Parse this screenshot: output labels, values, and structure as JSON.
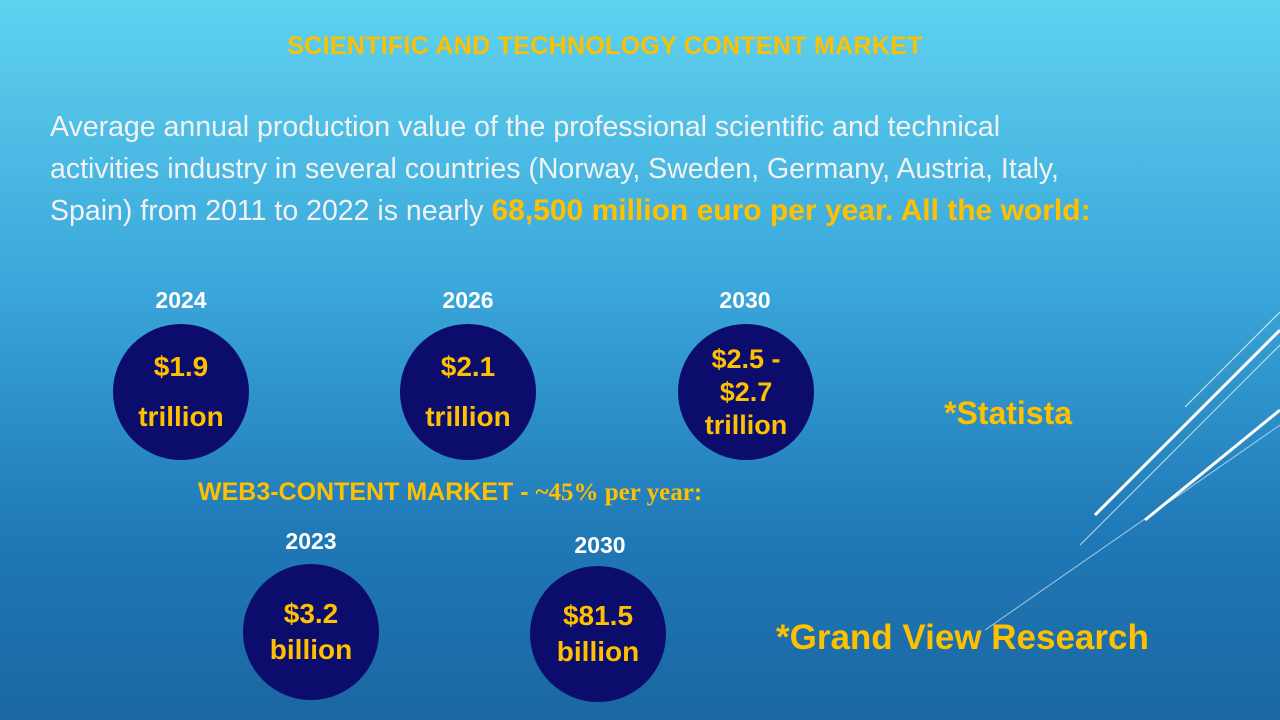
{
  "title": "SCIENTIFIC AND TECHNOLOGY CONTENT MARKET",
  "intro": {
    "text": "Average annual production value of the professional scientific and technical activities industry in several countries (Norway, Sweden, Germany, Austria, Italy, Spain) from 2011 to 2022 is nearly ",
    "highlight": "68,500 million euro per year. All the world:"
  },
  "world": {
    "items": [
      {
        "year": "2024",
        "lines": [
          "$1.9",
          "trillion"
        ]
      },
      {
        "year": "2026",
        "lines": [
          "$2.1",
          "trillion"
        ]
      },
      {
        "year": "2030",
        "lines": [
          "$2.5 -",
          "$2.7",
          "trillion"
        ]
      }
    ],
    "source": "*Statista"
  },
  "web3": {
    "heading": "WEB3-CONTENT MARKET - ",
    "growth": "~45% per year:",
    "items": [
      {
        "year": "2023",
        "lines": [
          "$3.2",
          "billion"
        ]
      },
      {
        "year": "2030",
        "lines": [
          "$81.5",
          "billion"
        ]
      }
    ],
    "source": "*Grand View Research"
  }
}
